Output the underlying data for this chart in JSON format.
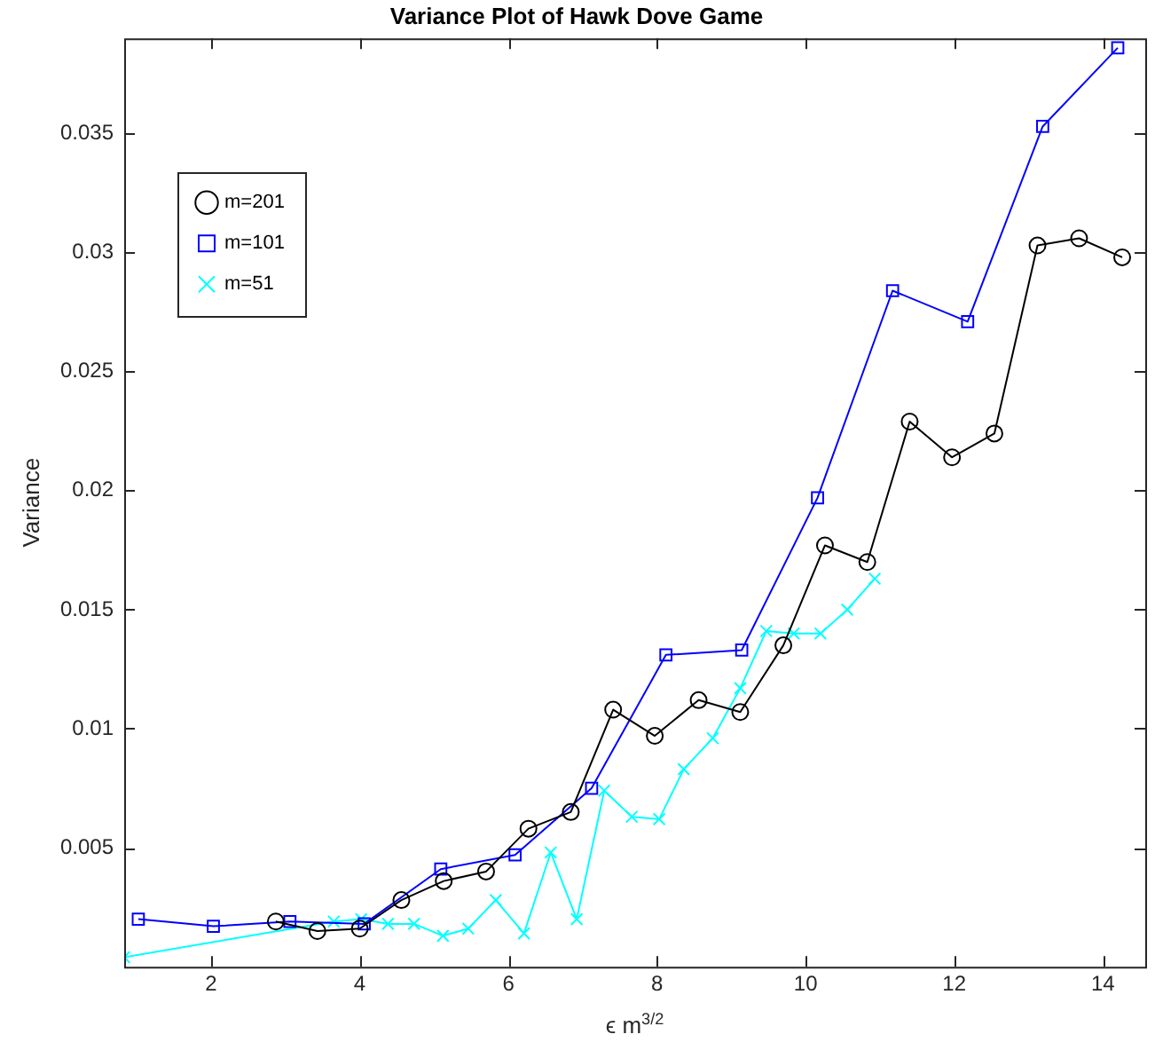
{
  "chart_data": {
    "type": "line",
    "title": "Variance Plot of Hawk Dove Game",
    "xlabel": "ϵ m$^{3/2}$",
    "ylabel": "Variance",
    "xlim": [
      0.83,
      14.57
    ],
    "xticks": [
      2,
      4,
      6,
      8,
      10,
      12,
      14
    ],
    "ylim": [
      0,
      0.039
    ],
    "yticks": [
      0.005,
      0.01,
      0.015,
      0.02,
      0.025,
      0.03,
      0.035
    ],
    "legend": "top left",
    "line_style": "solid",
    "series": [
      {
        "name": "m=201",
        "color": "#000000",
        "marker": "circle",
        "x": [
          2.87,
          3.43,
          4.0,
          4.56,
          5.13,
          5.7,
          6.27,
          6.84,
          7.41,
          7.97,
          8.56,
          9.12,
          9.7,
          10.26,
          10.83,
          11.4,
          11.97,
          12.54,
          13.12,
          13.68,
          14.26
        ],
        "values": [
          0.0019,
          0.0015,
          0.0016,
          0.0028,
          0.0036,
          0.004,
          0.0058,
          0.0065,
          0.0108,
          0.0097,
          0.0112,
          0.0107,
          0.0135,
          0.0177,
          0.017,
          0.0229,
          0.0214,
          0.0224,
          0.0303,
          0.0306,
          0.0298
        ]
      },
      {
        "name": "m=101",
        "color": "#0000ff",
        "marker": "square",
        "x": [
          1.02,
          2.03,
          3.06,
          4.06,
          5.09,
          6.09,
          7.12,
          8.12,
          9.14,
          10.16,
          11.17,
          12.18,
          13.19,
          14.2
        ],
        "values": [
          0.002,
          0.0017,
          0.0019,
          0.0018,
          0.0041,
          0.0047,
          0.0075,
          0.0131,
          0.0133,
          0.0197,
          0.0284,
          0.0271,
          0.0353,
          0.0386
        ]
      },
      {
        "name": "m=51",
        "color": "#00ffff",
        "marker": "cross",
        "x": [
          0.83,
          3.65,
          4.02,
          4.38,
          4.73,
          5.12,
          5.46,
          5.83,
          6.21,
          6.57,
          6.92,
          7.29,
          7.66,
          8.03,
          8.36,
          8.75,
          9.12,
          9.47,
          9.84,
          10.2,
          10.56,
          10.93
        ],
        "values": [
          0.0004,
          0.0019,
          0.002,
          0.0018,
          0.0018,
          0.0013,
          0.0016,
          0.0028,
          0.0014,
          0.0048,
          0.002,
          0.0074,
          0.0063,
          0.0062,
          0.0083,
          0.0096,
          0.0117,
          0.0141,
          0.014,
          0.014,
          0.015,
          0.0163
        ]
      }
    ]
  }
}
